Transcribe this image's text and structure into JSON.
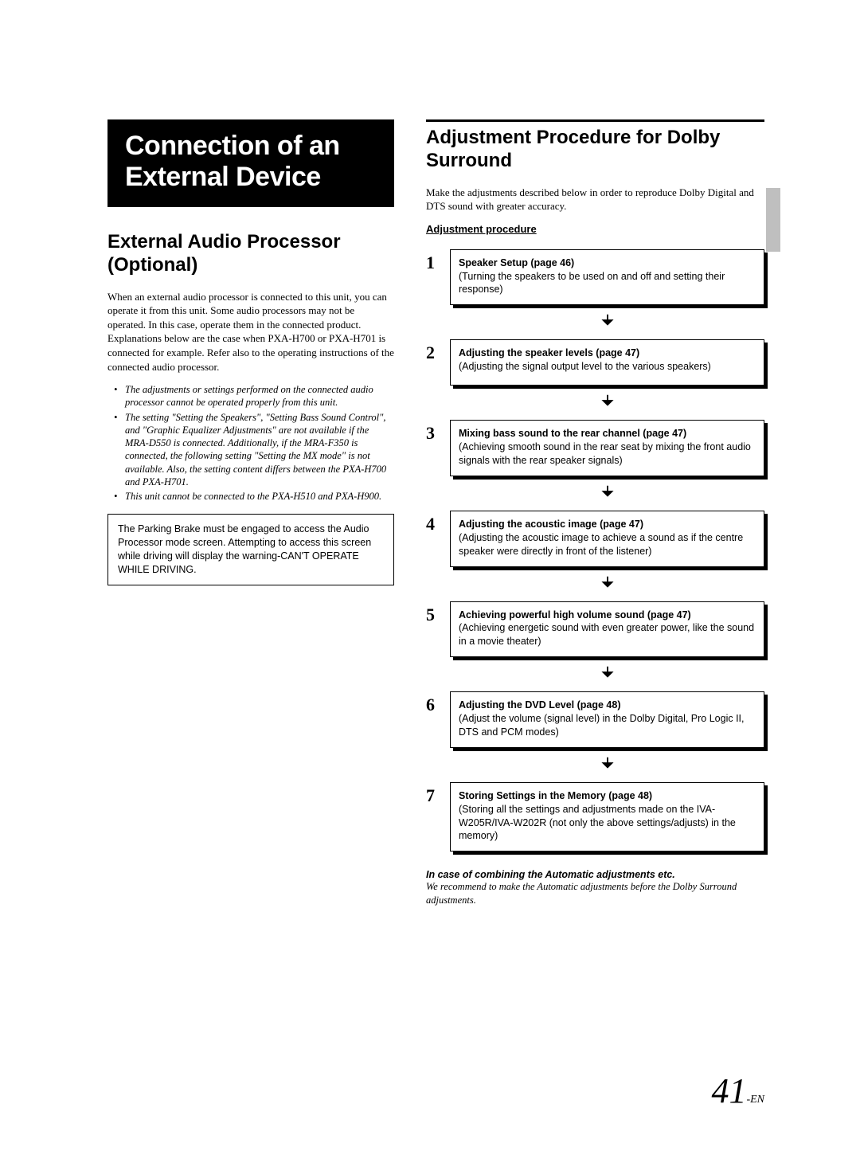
{
  "page": {
    "number": "41",
    "suffix": "-EN"
  },
  "left": {
    "titleLine1": "Connection of an",
    "titleLine2": "External Device",
    "h2": "External Audio Processor (Optional)",
    "intro": "When an external audio processor is connected to this unit, you can operate it from this unit. Some audio processors may not be operated. In this case, operate them in the connected product. Explanations below are the case when PXA-H700 or PXA-H701 is connected for example. Refer also to the operating instructions of the connected audio processor.",
    "bullets": [
      "The adjustments or settings performed on the connected audio processor cannot be operated properly from this unit.",
      "The setting \"Setting the Speakers\", \"Setting Bass Sound Control\", and \"Graphic Equalizer Adjustments\" are not available if the MRA-D550 is connected. Additionally, if the MRA-F350 is connected, the following setting \"Setting the MX mode\" is not available. Also, the setting content differs between the PXA-H700 and PXA-H701.",
      "This unit cannot be connected to the PXA-H510 and PXA-H900."
    ],
    "noteBox": "The Parking Brake must be engaged to access the Audio Processor mode screen. Attempting to access this screen while driving will display the warning-CAN'T OPERATE WHILE DRIVING."
  },
  "right": {
    "h2": "Adjustment Procedure for Dolby Surround",
    "intro": "Make the adjustments described below in order to reproduce Dolby Digital and DTS sound with greater accuracy.",
    "procedureLabel": "Adjustment procedure",
    "steps": [
      {
        "num": "1",
        "title": "Speaker Setup (page 46)",
        "body": "(Turning the speakers to be used on and off and setting their response)"
      },
      {
        "num": "2",
        "title": "Adjusting the speaker levels (page 47)",
        "body": "(Adjusting the signal output level to the various speakers)"
      },
      {
        "num": "3",
        "title": "Mixing bass sound to the rear channel (page 47)",
        "body": "(Achieving smooth sound in the rear seat by mixing the front audio signals with the rear speaker signals)"
      },
      {
        "num": "4",
        "title": "Adjusting the acoustic image (page 47)",
        "body": "(Adjusting the acoustic image to achieve a sound as if the centre speaker were directly in front of the listener)"
      },
      {
        "num": "5",
        "title": "Achieving powerful high volume sound (page 47)",
        "body": "(Achieving energetic sound with even greater power, like the sound in a movie theater)"
      },
      {
        "num": "6",
        "title": "Adjusting the DVD Level (page 48)",
        "body": "(Adjust the volume (signal level) in the Dolby Digital, Pro Logic II, DTS and PCM modes)"
      },
      {
        "num": "7",
        "title": "Storing Settings in the Memory (page 48)",
        "body": "(Storing all the settings and adjustments made on the IVA-W205R/IVA-W202R (not only the above settings/adjusts) in the memory)"
      }
    ],
    "footnoteTitle": "In case of combining the Automatic adjustments etc.",
    "footnoteBody": "We recommend to make the Automatic adjustments before the Dolby Surround adjustments."
  }
}
